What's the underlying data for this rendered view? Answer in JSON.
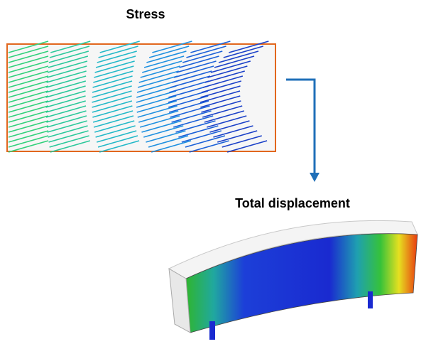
{
  "stress": {
    "label": "Stress"
  },
  "displacement": {
    "label": "Total displacement"
  }
}
